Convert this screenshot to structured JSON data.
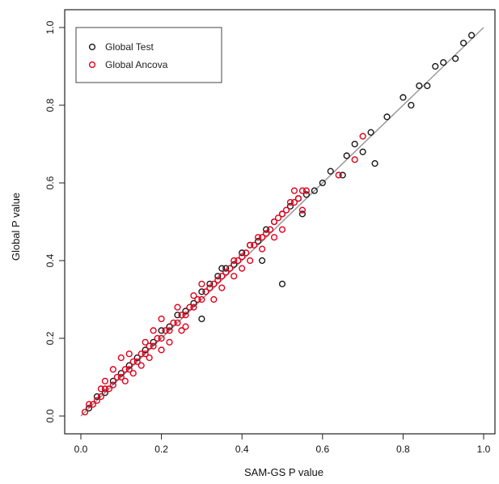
{
  "chart_data": {
    "type": "scatter",
    "xlabel": "SAM-GS P value",
    "ylabel": "Global P value",
    "xlim": [
      0,
      1
    ],
    "ylim": [
      0,
      1
    ],
    "xticks": [
      "0.0",
      "0.2",
      "0.4",
      "0.6",
      "0.8",
      "1.0"
    ],
    "yticks": [
      "0.0",
      "0.2",
      "0.4",
      "0.6",
      "0.8",
      "1.0"
    ],
    "grid": false,
    "legend_position": "top-left",
    "reference_line": {
      "type": "identity",
      "color": "#999999"
    },
    "series": [
      {
        "name": "Global Test",
        "color": "#1a1a1a",
        "points": [
          [
            0.02,
            0.02
          ],
          [
            0.04,
            0.05
          ],
          [
            0.06,
            0.06
          ],
          [
            0.08,
            0.09
          ],
          [
            0.1,
            0.11
          ],
          [
            0.12,
            0.13
          ],
          [
            0.14,
            0.15
          ],
          [
            0.16,
            0.17
          ],
          [
            0.18,
            0.19
          ],
          [
            0.2,
            0.22
          ],
          [
            0.22,
            0.23
          ],
          [
            0.24,
            0.26
          ],
          [
            0.26,
            0.27
          ],
          [
            0.28,
            0.29
          ],
          [
            0.3,
            0.32
          ],
          [
            0.32,
            0.34
          ],
          [
            0.34,
            0.36
          ],
          [
            0.36,
            0.38
          ],
          [
            0.38,
            0.39
          ],
          [
            0.4,
            0.42
          ],
          [
            0.42,
            0.44
          ],
          [
            0.44,
            0.45
          ],
          [
            0.46,
            0.48
          ],
          [
            0.48,
            0.5
          ],
          [
            0.5,
            0.52
          ],
          [
            0.52,
            0.54
          ],
          [
            0.54,
            0.56
          ],
          [
            0.56,
            0.57
          ],
          [
            0.5,
            0.34
          ],
          [
            0.58,
            0.58
          ],
          [
            0.62,
            0.63
          ],
          [
            0.65,
            0.62
          ],
          [
            0.68,
            0.7
          ],
          [
            0.7,
            0.68
          ],
          [
            0.72,
            0.73
          ],
          [
            0.73,
            0.65
          ],
          [
            0.76,
            0.77
          ],
          [
            0.8,
            0.82
          ],
          [
            0.82,
            0.8
          ],
          [
            0.84,
            0.85
          ],
          [
            0.86,
            0.85
          ],
          [
            0.88,
            0.9
          ],
          [
            0.9,
            0.91
          ],
          [
            0.93,
            0.92
          ],
          [
            0.95,
            0.96
          ],
          [
            0.97,
            0.98
          ],
          [
            0.3,
            0.25
          ],
          [
            0.35,
            0.38
          ],
          [
            0.45,
            0.4
          ],
          [
            0.55,
            0.52
          ],
          [
            0.6,
            0.6
          ],
          [
            0.66,
            0.67
          ]
        ]
      },
      {
        "name": "Global Ancova",
        "color": "#e0001b",
        "points": [
          [
            0.01,
            0.01
          ],
          [
            0.02,
            0.03
          ],
          [
            0.03,
            0.03
          ],
          [
            0.04,
            0.04
          ],
          [
            0.05,
            0.05
          ],
          [
            0.06,
            0.07
          ],
          [
            0.07,
            0.07
          ],
          [
            0.08,
            0.08
          ],
          [
            0.09,
            0.1
          ],
          [
            0.1,
            0.1
          ],
          [
            0.11,
            0.12
          ],
          [
            0.12,
            0.12
          ],
          [
            0.13,
            0.14
          ],
          [
            0.14,
            0.14
          ],
          [
            0.15,
            0.16
          ],
          [
            0.16,
            0.16
          ],
          [
            0.17,
            0.18
          ],
          [
            0.18,
            0.18
          ],
          [
            0.19,
            0.2
          ],
          [
            0.2,
            0.2
          ],
          [
            0.21,
            0.22
          ],
          [
            0.22,
            0.22
          ],
          [
            0.23,
            0.24
          ],
          [
            0.24,
            0.24
          ],
          [
            0.25,
            0.26
          ],
          [
            0.26,
            0.26
          ],
          [
            0.27,
            0.28
          ],
          [
            0.28,
            0.28
          ],
          [
            0.29,
            0.3
          ],
          [
            0.3,
            0.3
          ],
          [
            0.31,
            0.32
          ],
          [
            0.32,
            0.33
          ],
          [
            0.33,
            0.34
          ],
          [
            0.34,
            0.35
          ],
          [
            0.35,
            0.36
          ],
          [
            0.36,
            0.37
          ],
          [
            0.37,
            0.38
          ],
          [
            0.38,
            0.4
          ],
          [
            0.39,
            0.4
          ],
          [
            0.4,
            0.41
          ],
          [
            0.41,
            0.42
          ],
          [
            0.42,
            0.44
          ],
          [
            0.43,
            0.44
          ],
          [
            0.44,
            0.46
          ],
          [
            0.45,
            0.46
          ],
          [
            0.46,
            0.47
          ],
          [
            0.47,
            0.48
          ],
          [
            0.48,
            0.5
          ],
          [
            0.49,
            0.51
          ],
          [
            0.5,
            0.52
          ],
          [
            0.51,
            0.53
          ],
          [
            0.52,
            0.55
          ],
          [
            0.53,
            0.55
          ],
          [
            0.54,
            0.56
          ],
          [
            0.55,
            0.58
          ],
          [
            0.56,
            0.58
          ],
          [
            0.08,
            0.12
          ],
          [
            0.1,
            0.15
          ],
          [
            0.12,
            0.16
          ],
          [
            0.15,
            0.13
          ],
          [
            0.18,
            0.22
          ],
          [
            0.2,
            0.17
          ],
          [
            0.25,
            0.22
          ],
          [
            0.28,
            0.31
          ],
          [
            0.35,
            0.33
          ],
          [
            0.45,
            0.43
          ],
          [
            0.55,
            0.53
          ],
          [
            0.06,
            0.09
          ],
          [
            0.11,
            0.09
          ],
          [
            0.16,
            0.19
          ],
          [
            0.22,
            0.19
          ],
          [
            0.3,
            0.34
          ],
          [
            0.4,
            0.38
          ],
          [
            0.5,
            0.48
          ],
          [
            0.53,
            0.58
          ],
          [
            0.64,
            0.62
          ],
          [
            0.68,
            0.66
          ],
          [
            0.7,
            0.72
          ],
          [
            0.2,
            0.25
          ],
          [
            0.26,
            0.23
          ],
          [
            0.05,
            0.07
          ],
          [
            0.13,
            0.11
          ],
          [
            0.17,
            0.15
          ],
          [
            0.24,
            0.28
          ],
          [
            0.33,
            0.3
          ],
          [
            0.38,
            0.36
          ],
          [
            0.42,
            0.4
          ],
          [
            0.48,
            0.46
          ]
        ]
      }
    ]
  }
}
